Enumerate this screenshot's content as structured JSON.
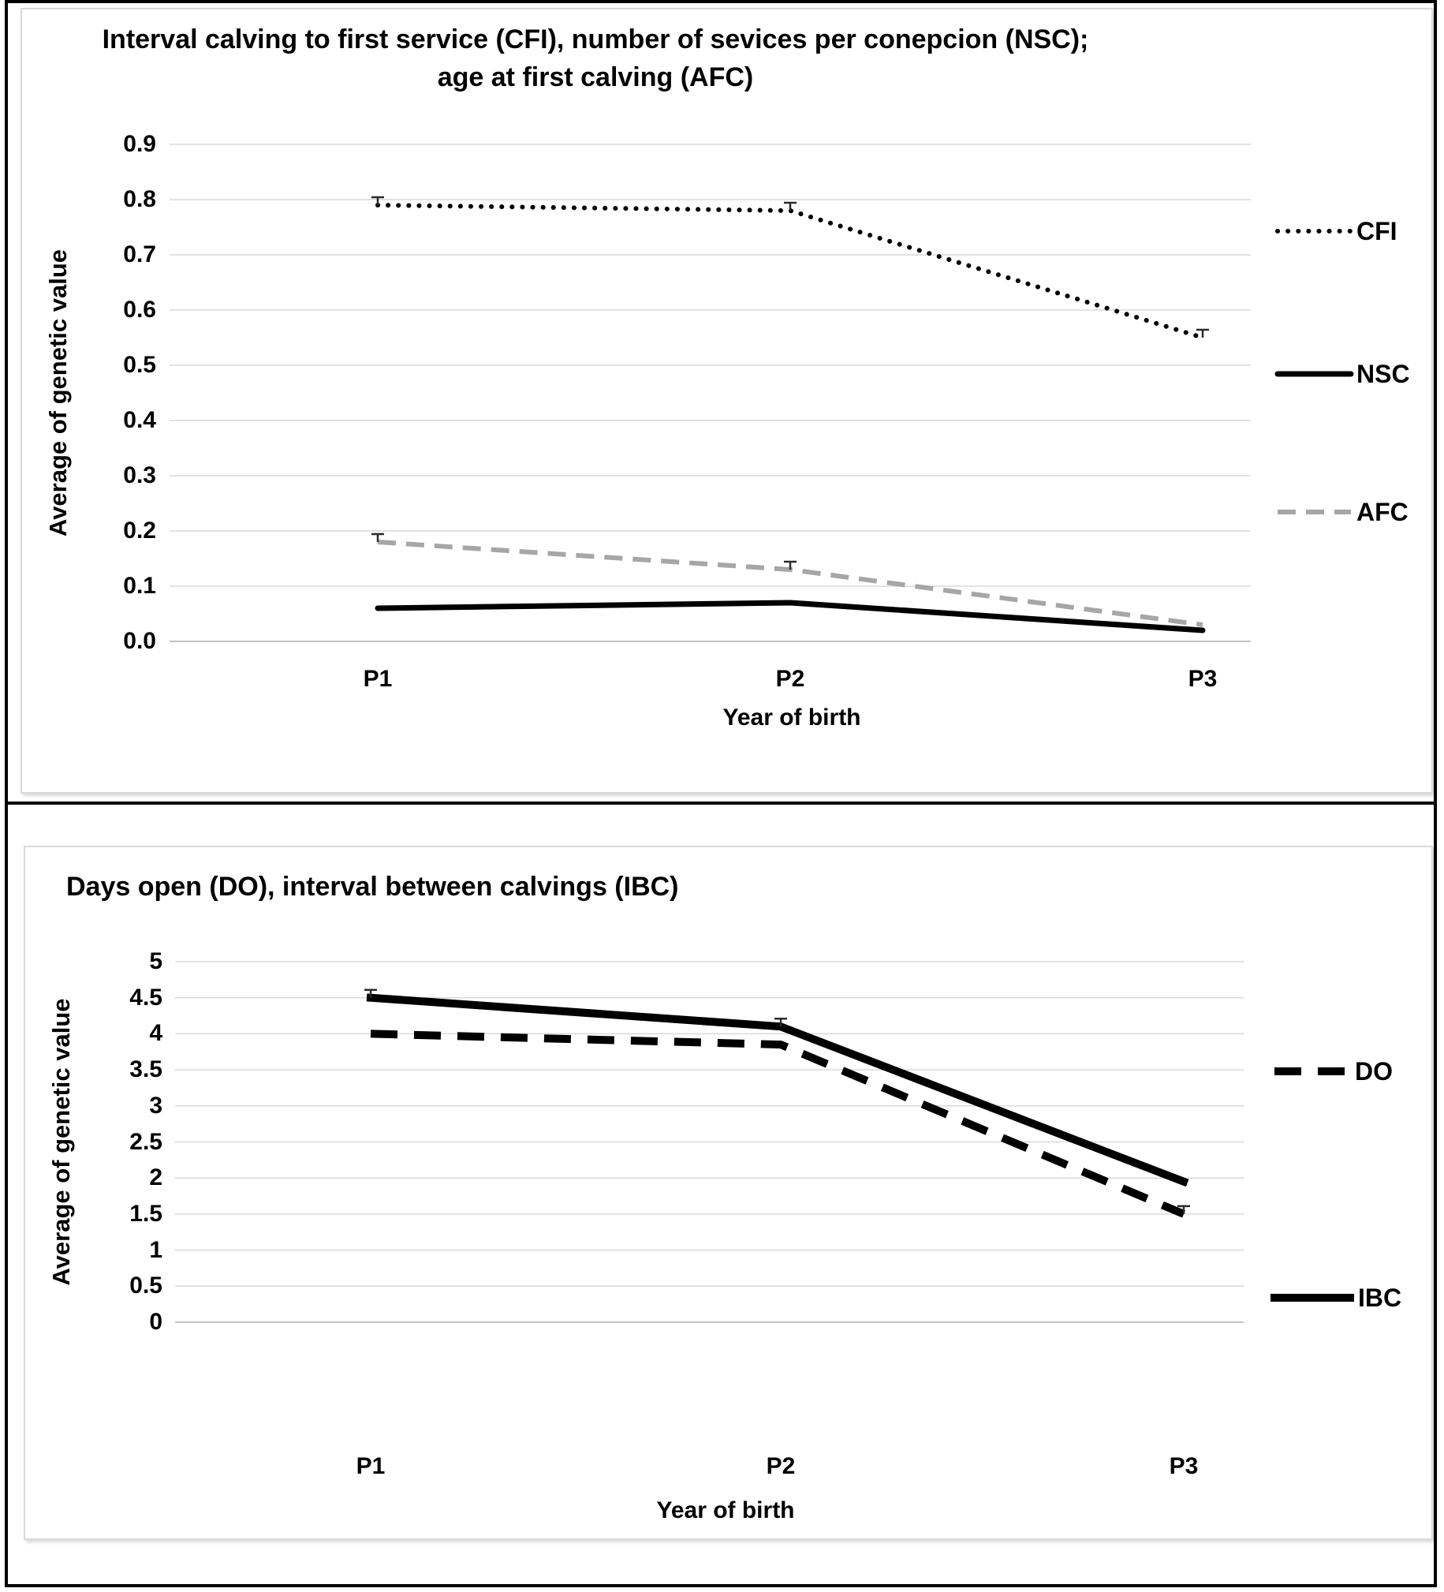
{
  "chart_data": [
    {
      "type": "line",
      "title": "Interval calving to first service (CFI), number of sevices per conepcion (NSC); age at first calving (AFC)",
      "title_lines": [
        "Interval calving to first service (CFI), number of sevices per conepcion (NSC);",
        "age at first calving (AFC)"
      ],
      "xlabel": "Year of birth",
      "ylabel": "Average of genetic value",
      "categories": [
        "P1",
        "P2",
        "P3"
      ],
      "ylim": [
        0.0,
        0.9
      ],
      "ytick_step": 0.1,
      "yticks": [
        "0.9",
        "0.8",
        "0.7",
        "0.6",
        "0.5",
        "0.4",
        "0.3",
        "0.2",
        "0.1",
        "0.0"
      ],
      "grid": true,
      "legend_position": "right",
      "series": [
        {
          "name": "CFI",
          "values": [
            0.79,
            0.78,
            0.55
          ],
          "style": "dotted-black",
          "color": "#000000"
        },
        {
          "name": "NSC",
          "values": [
            0.06,
            0.07,
            0.02
          ],
          "style": "solid-black",
          "color": "#000000"
        },
        {
          "name": "AFC",
          "values": [
            0.18,
            0.13,
            0.03
          ],
          "style": "dashed-gray",
          "color": "#a6a6a6"
        }
      ],
      "error_bar_points": [
        [
          "CFI",
          0
        ],
        [
          "CFI",
          1
        ],
        [
          "CFI",
          2
        ],
        [
          "AFC",
          0
        ],
        [
          "AFC",
          1
        ]
      ]
    },
    {
      "type": "line",
      "title": "Days open (DO), interval between calvings (IBC)",
      "xlabel": "Year of birth",
      "ylabel": "Average of genetic value",
      "categories": [
        "P1",
        "P2",
        "P3"
      ],
      "ylim": [
        0,
        5
      ],
      "ytick_step": 0.5,
      "yticks": [
        "5",
        "4.5",
        "4",
        "3.5",
        "3",
        "2.5",
        "2",
        "1.5",
        "1",
        "0.5",
        "0"
      ],
      "grid": true,
      "legend_position": "right",
      "series": [
        {
          "name": "DO",
          "values": [
            4.0,
            3.85,
            1.5
          ],
          "style": "dashed-black-thick",
          "color": "#000000"
        },
        {
          "name": "IBC",
          "values": [
            4.5,
            4.1,
            1.95
          ],
          "style": "solid-black-thick",
          "color": "#000000"
        }
      ],
      "error_bar_points": [
        [
          "IBC",
          0
        ],
        [
          "IBC",
          1
        ],
        [
          "DO",
          2
        ]
      ]
    }
  ],
  "colors": {
    "grid": "#d9d9d9",
    "black_series": "#000000",
    "gray_series": "#a6a6a6",
    "frame": "#000000",
    "panel_border": "#d9d9d9"
  }
}
